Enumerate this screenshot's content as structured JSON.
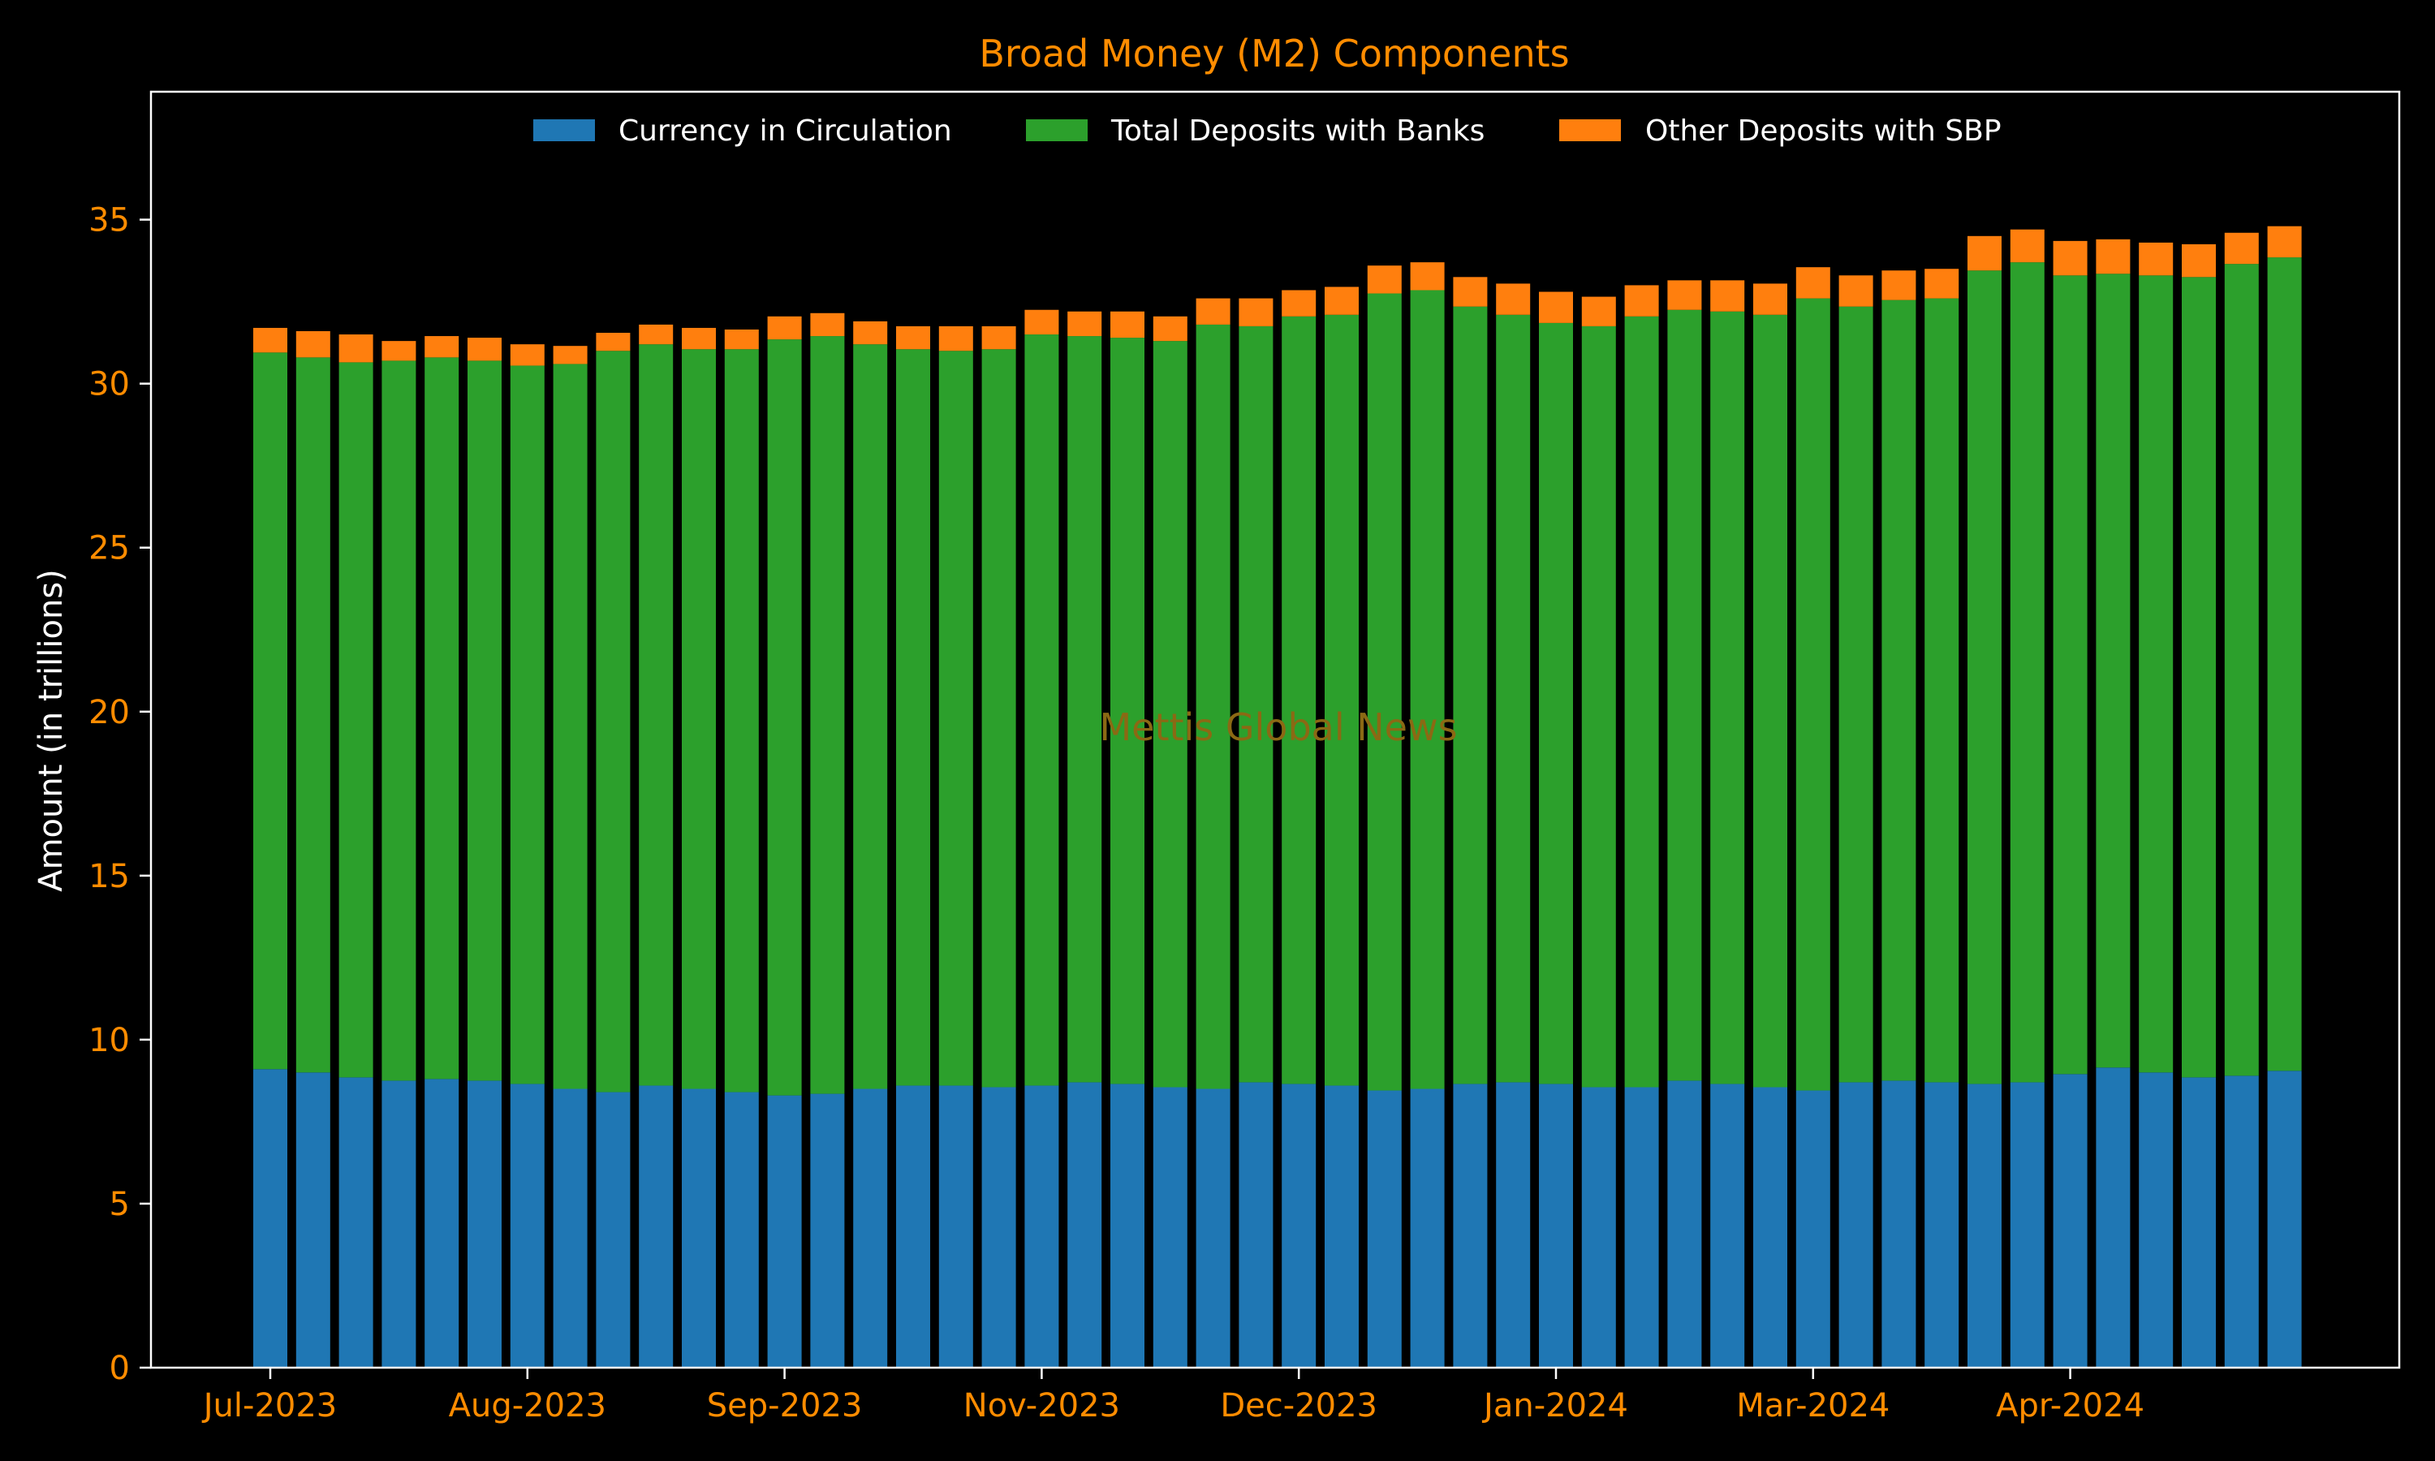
{
  "colors": {
    "background": "#000000",
    "axes": "#ffffff",
    "title": "#ff8c00",
    "tick_labels": "#ff8c00",
    "ylabel": "#ffffff",
    "legend_text": "#ffffff",
    "watermark": "#8b6914",
    "currency": "#1f77b4",
    "deposits": "#2ca02c",
    "other": "#ff7f0e"
  },
  "watermark": "Mettis Global News",
  "chart_data": {
    "type": "bar",
    "stacked": true,
    "title": "Broad Money (M2) Components",
    "xlabel": "",
    "ylabel": "Amount (in trillions)",
    "ylim": [
      0,
      38.9
    ],
    "yticks": [
      0,
      5,
      10,
      15,
      20,
      25,
      30,
      35
    ],
    "xtick_labels": [
      "Jul-2023",
      "Aug-2023",
      "Sep-2023",
      "Nov-2023",
      "Dec-2023",
      "Jan-2024",
      "Mar-2024",
      "Apr-2024"
    ],
    "xtick_bar_index": [
      0,
      6,
      12,
      18,
      24,
      30,
      36,
      42
    ],
    "grid": false,
    "legend_position": "top-center",
    "series": [
      {
        "name": "Currency in Circulation",
        "color": "#1f77b4",
        "values": [
          9.1,
          9.0,
          8.85,
          8.75,
          8.8,
          8.75,
          8.65,
          8.5,
          8.4,
          8.6,
          8.5,
          8.4,
          8.3,
          8.35,
          8.5,
          8.6,
          8.6,
          8.55,
          8.6,
          8.7,
          8.65,
          8.55,
          8.5,
          8.7,
          8.65,
          8.6,
          8.45,
          8.5,
          8.65,
          8.7,
          8.65,
          8.55,
          8.55,
          8.75,
          8.65,
          8.55,
          8.45,
          8.7,
          8.75,
          8.7,
          8.65,
          8.7,
          8.95,
          9.15,
          9.0,
          8.85,
          8.9,
          9.05
        ]
      },
      {
        "name": "Total Deposits with Banks",
        "color": "#2ca02c",
        "values": [
          21.85,
          21.8,
          21.8,
          21.95,
          22.0,
          21.95,
          21.9,
          22.1,
          22.6,
          22.6,
          22.55,
          22.65,
          23.05,
          23.1,
          22.7,
          22.45,
          22.4,
          22.5,
          22.9,
          22.75,
          22.75,
          22.75,
          23.3,
          23.05,
          23.4,
          23.5,
          24.3,
          24.35,
          23.7,
          23.4,
          23.2,
          23.2,
          23.5,
          23.5,
          23.55,
          23.55,
          24.15,
          23.65,
          23.8,
          23.9,
          24.8,
          25.0,
          24.35,
          24.2,
          24.3,
          24.4,
          24.75,
          24.8
        ]
      },
      {
        "name": "Other Deposits with SBP",
        "color": "#ff7f0e",
        "values": [
          0.75,
          0.8,
          0.85,
          0.6,
          0.65,
          0.7,
          0.65,
          0.55,
          0.55,
          0.6,
          0.65,
          0.6,
          0.7,
          0.7,
          0.7,
          0.7,
          0.75,
          0.7,
          0.75,
          0.75,
          0.8,
          0.75,
          0.8,
          0.85,
          0.8,
          0.85,
          0.85,
          0.85,
          0.9,
          0.95,
          0.95,
          0.9,
          0.95,
          0.9,
          0.95,
          0.95,
          0.95,
          0.95,
          0.9,
          0.9,
          1.05,
          1.0,
          1.05,
          1.05,
          1.0,
          1.0,
          0.95,
          0.95
        ]
      }
    ]
  }
}
